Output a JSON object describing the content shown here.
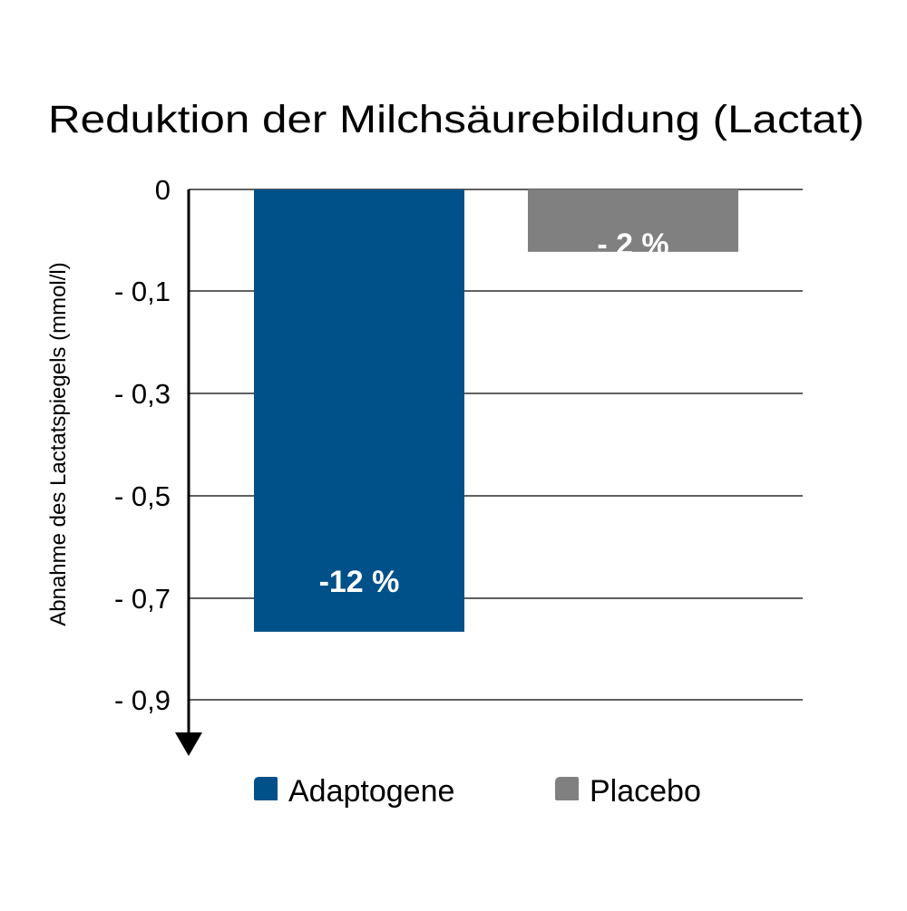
{
  "chart_data": {
    "type": "bar",
    "title": "Reduktion der Milchsäurebildung (Lactat)",
    "ylabel": "Abnahme des Lactatspiegels (mmol/l)",
    "xlabel": "",
    "categories": [
      "Adaptogene",
      "Placebo"
    ],
    "values": [
      -0.78,
      -0.11
    ],
    "data_labels": [
      "-12 %",
      "- 2 %"
    ],
    "ylim": [
      -0.9,
      0
    ],
    "y_ticks": [
      {
        "label": "0",
        "level": 0
      },
      {
        "label": "- 0,1",
        "level": 1
      },
      {
        "label": "- 0,3",
        "level": 2
      },
      {
        "label": "- 0,5",
        "level": 3
      },
      {
        "label": "- 0,7",
        "level": 4
      },
      {
        "label": "- 0,9",
        "level": 5
      }
    ],
    "y_tick_order_note": "",
    "grid": true,
    "legend": {
      "position": "bottom",
      "entries": [
        {
          "name": "Adaptogene",
          "color": "#005089"
        },
        {
          "name": "Placebo",
          "color": "#808080"
        }
      ]
    },
    "colors": {
      "bars": [
        "#005089",
        "#808080"
      ],
      "axis": "#000000",
      "grid": "#000000",
      "data_label": "#ffffff",
      "text": "#000000"
    }
  }
}
